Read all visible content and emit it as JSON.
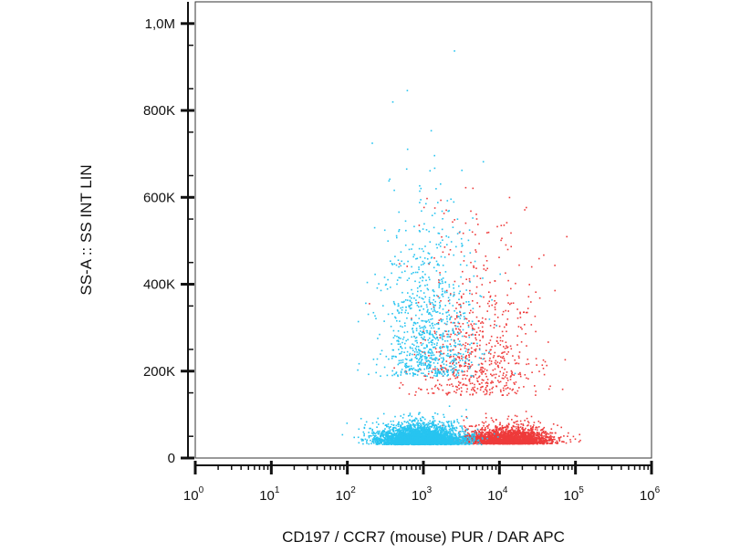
{
  "chart_data": {
    "type": "scatter",
    "xlabel": "CD197 / CCR7 (mouse) PUR / DAR APC",
    "ylabel": "SS-A :: SS INT LIN",
    "x_scale": "log10",
    "xlim": [
      1,
      1000000
    ],
    "ylim": [
      0,
      1050000
    ],
    "x_ticks": [
      {
        "base": "10",
        "exp": "0"
      },
      {
        "base": "10",
        "exp": "1"
      },
      {
        "base": "10",
        "exp": "2"
      },
      {
        "base": "10",
        "exp": "3"
      },
      {
        "base": "10",
        "exp": "4"
      },
      {
        "base": "10",
        "exp": "5"
      },
      {
        "base": "10",
        "exp": "6"
      }
    ],
    "y_ticks": [
      {
        "value": 0,
        "label": "0"
      },
      {
        "value": 200000,
        "label": "200K"
      },
      {
        "value": 400000,
        "label": "400K"
      },
      {
        "value": 600000,
        "label": "600K"
      },
      {
        "value": 800000,
        "label": "800K"
      },
      {
        "value": 1000000,
        "label": "1,0M"
      }
    ],
    "grid": false,
    "series": [
      {
        "color": "#ee3b3b",
        "populations": [
          {
            "x_log_center": 4.1,
            "x_log_sd": 0.28,
            "y_center": 40000,
            "y_sd": 20000,
            "count": 2600
          },
          {
            "x_log_center": 3.7,
            "x_log_sd": 0.4,
            "y_center": 200000,
            "y_sd": 180000,
            "count": 700
          }
        ]
      },
      {
        "color": "#27c4f0",
        "populations": [
          {
            "x_log_center": 2.95,
            "x_log_sd": 0.28,
            "y_center": 40000,
            "y_sd": 25000,
            "count": 3600
          },
          {
            "x_log_center": 3.05,
            "x_log_sd": 0.32,
            "y_center": 250000,
            "y_sd": 200000,
            "count": 900
          }
        ]
      }
    ]
  }
}
